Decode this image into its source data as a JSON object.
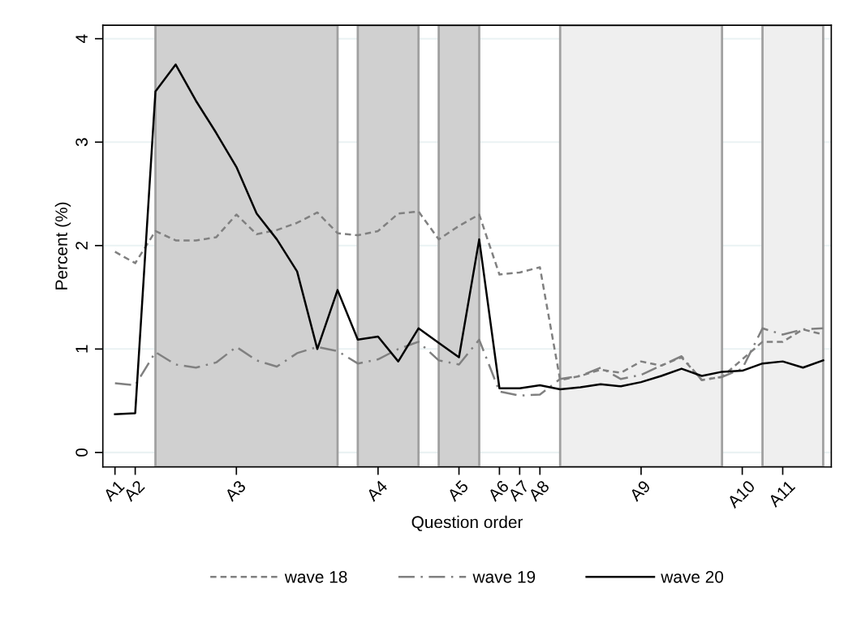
{
  "chart_data": {
    "type": "line",
    "xlabel": "Question order",
    "ylabel": "Percent (%)",
    "categories": [
      "A1",
      "A2",
      null,
      null,
      null,
      null,
      "A3",
      null,
      null,
      null,
      null,
      null,
      null,
      "A4",
      null,
      null,
      null,
      "A5",
      null,
      "A6",
      "A7",
      "A8",
      null,
      null,
      null,
      null,
      "A9",
      null,
      null,
      null,
      null,
      "A10",
      null,
      "A11",
      null,
      null
    ],
    "series": [
      {
        "name": "wave 18",
        "color": "#808080",
        "line_style": "dashed",
        "values": [
          1.94,
          1.83,
          2.14,
          2.05,
          2.05,
          2.08,
          2.3,
          2.11,
          2.15,
          2.22,
          2.32,
          2.12,
          2.1,
          2.14,
          2.31,
          2.33,
          2.06,
          2.19,
          2.3,
          1.72,
          1.74,
          1.79,
          0.7,
          0.74,
          0.8,
          0.77,
          0.88,
          0.84,
          0.92,
          0.7,
          0.73,
          0.9,
          1.07,
          1.07,
          1.19,
          1.14
        ]
      },
      {
        "name": "wave 19",
        "color": "#808080",
        "line_style": "dashdot",
        "values": [
          0.67,
          0.65,
          0.97,
          0.85,
          0.82,
          0.87,
          1.02,
          0.89,
          0.83,
          0.96,
          1.02,
          0.98,
          0.86,
          0.9,
          1.0,
          1.07,
          0.89,
          0.85,
          1.09,
          0.59,
          0.55,
          0.56,
          0.71,
          0.74,
          0.82,
          0.71,
          0.75,
          0.84,
          0.93,
          0.7,
          0.73,
          0.81,
          1.2,
          1.14,
          1.19,
          1.2
        ]
      },
      {
        "name": "wave 20",
        "color": "#000000",
        "line_style": "solid",
        "values": [
          0.37,
          0.38,
          3.49,
          3.75,
          3.4,
          3.09,
          2.76,
          2.31,
          2.06,
          1.75,
          1.0,
          1.57,
          1.09,
          1.12,
          0.88,
          1.2,
          1.06,
          0.92,
          2.06,
          0.62,
          0.62,
          0.65,
          0.61,
          0.63,
          0.66,
          0.64,
          0.68,
          0.74,
          0.81,
          0.74,
          0.78,
          0.79,
          0.86,
          0.88,
          0.82,
          0.89
        ]
      }
    ],
    "ylim": [
      -0.14,
      4.13
    ],
    "yticks": [
      0,
      1,
      2,
      3,
      4
    ],
    "grid": "y",
    "legend": "bottom"
  }
}
